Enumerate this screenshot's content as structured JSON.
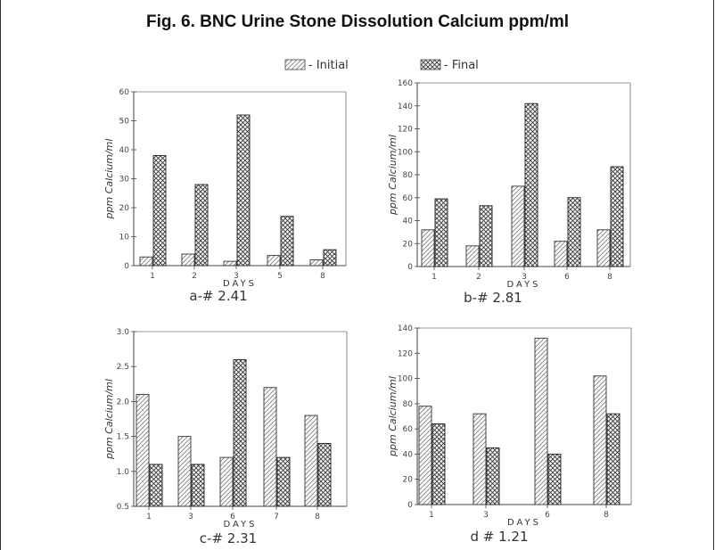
{
  "title": "Fig. 6. BNC Urine Stone Dissolution Calcium ppm/ml",
  "legend": [
    {
      "label": "- Initial",
      "pattern": "hatch"
    },
    {
      "label": "- Final",
      "pattern": "crosshatch"
    }
  ],
  "chart_data": [
    {
      "type": "bar",
      "panel_label": "a-# 2.41",
      "xlabel": "DAYS",
      "ylabel": "ppm Calcium/ml",
      "ylim": [
        0,
        60
      ],
      "yticks": [
        "0",
        "10",
        "20",
        "30",
        "40",
        "50",
        "60"
      ],
      "categories": [
        "1",
        "2",
        "3",
        "5",
        "8"
      ],
      "series": [
        {
          "name": "- Initial",
          "values": [
            3,
            4,
            1.5,
            3.5,
            2
          ]
        },
        {
          "name": "- Final",
          "values": [
            38,
            28,
            52,
            17,
            5.5
          ]
        }
      ]
    },
    {
      "type": "bar",
      "panel_label": "b-# 2.81",
      "xlabel": "DAYS",
      "ylabel": "ppm Calcium/ml",
      "ylim": [
        0,
        160
      ],
      "yticks": [
        "0",
        "20",
        "40",
        "60",
        "80",
        "100",
        "120",
        "140",
        "160"
      ],
      "categories": [
        "1",
        "2",
        "3",
        "6",
        "8"
      ],
      "series": [
        {
          "name": "- Initial",
          "values": [
            32,
            18,
            70,
            22,
            32
          ]
        },
        {
          "name": "- Final",
          "values": [
            59,
            53,
            142,
            60,
            87
          ]
        }
      ]
    },
    {
      "type": "bar",
      "panel_label": "c-# 2.31",
      "xlabel": "DAYS",
      "ylabel": "ppm Calcium/ml",
      "ylim": [
        0.5,
        3.0
      ],
      "yticks": [
        "0.5",
        "1.0",
        "1.5",
        "2.0",
        "2.5",
        "3.0"
      ],
      "categories": [
        "1",
        "3",
        "6",
        "7",
        "8"
      ],
      "series": [
        {
          "name": "- Initial",
          "values": [
            2.1,
            1.5,
            1.2,
            2.2,
            1.8
          ]
        },
        {
          "name": "- Final",
          "values": [
            1.1,
            1.1,
            2.6,
            1.2,
            1.4
          ]
        }
      ]
    },
    {
      "type": "bar",
      "panel_label": "d # 1.21",
      "xlabel": "DAYS",
      "ylabel": "ppm Calcium/ml",
      "ylim": [
        0,
        140
      ],
      "yticks": [
        "0",
        "20",
        "40",
        "60",
        "80",
        "100",
        "120",
        "140"
      ],
      "categories": [
        "1",
        "3",
        "6",
        "8"
      ],
      "series": [
        {
          "name": "- Initial",
          "values": [
            78,
            72,
            132,
            102
          ]
        },
        {
          "name": "- Final",
          "values": [
            64,
            45,
            40,
            72
          ]
        }
      ]
    }
  ]
}
